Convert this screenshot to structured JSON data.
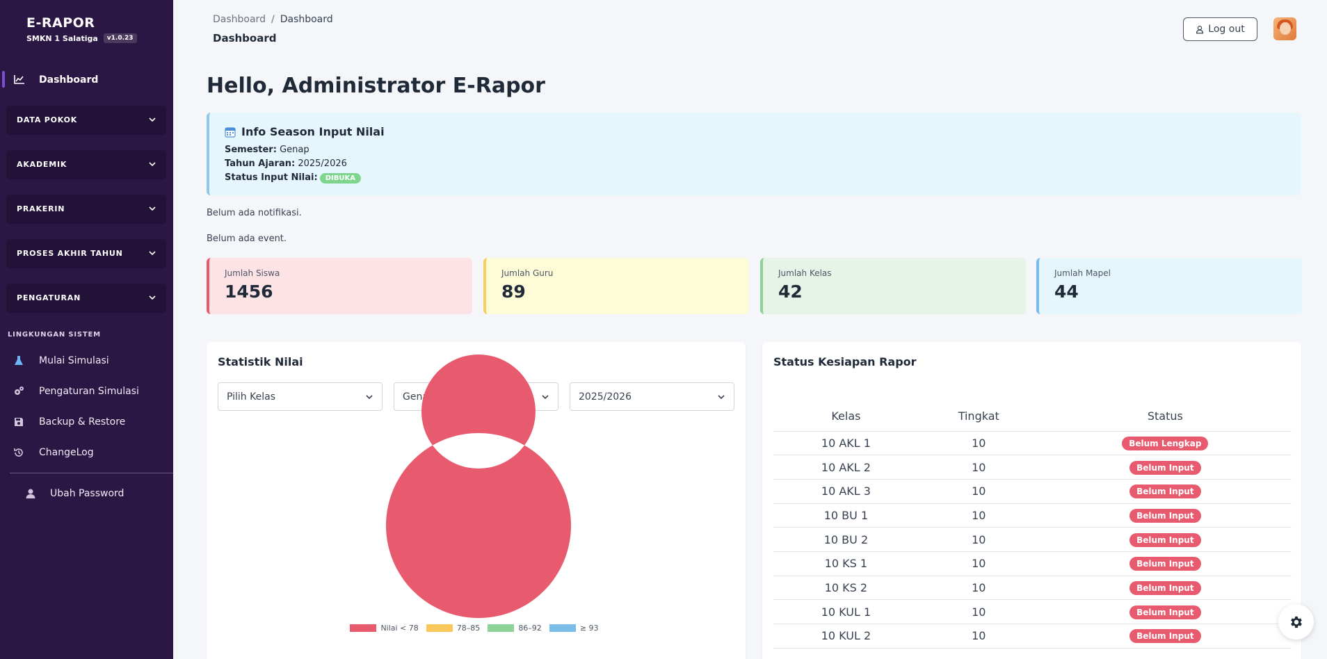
{
  "sidebar": {
    "brand_title": "E-RAPOR",
    "school": "SMKN 1 Salatiga",
    "version": "v1.0.23",
    "active_item": {
      "label": "Dashboard",
      "icon": "chart-line-icon"
    },
    "groups": [
      {
        "label": "DATA POKOK"
      },
      {
        "label": "AKADEMIK"
      },
      {
        "label": "PRAKERIN"
      },
      {
        "label": "PROSES AKHIR TAHUN"
      },
      {
        "label": "PENGATURAN"
      }
    ],
    "section_title": "LINGKUNGAN SISTEM",
    "items": [
      {
        "label": "Mulai Simulasi",
        "icon": "flask-icon"
      },
      {
        "label": "Pengaturan Simulasi",
        "icon": "gears-icon"
      },
      {
        "label": "Backup & Restore",
        "icon": "save-icon"
      },
      {
        "label": "ChangeLog",
        "icon": "history-icon"
      }
    ],
    "footer_item": {
      "label": "Ubah Password",
      "icon": "user-icon"
    }
  },
  "header": {
    "breadcrumb": [
      "Dashboard",
      "Dashboard"
    ],
    "page_title": "Dashboard",
    "logout_label": "Log out"
  },
  "greeting": "Hello, Administrator E-Rapor",
  "info": {
    "title": "Info Season Input Nilai",
    "semester_label": "Semester:",
    "semester": "Genap",
    "year_label": "Tahun Ajaran:",
    "year": "2025/2026",
    "status_label": "Status Input Nilai:",
    "status": "DIBUKA"
  },
  "notifications": "Belum ada notifikasi.",
  "events": "Belum ada event.",
  "stats": [
    {
      "label": "Jumlah Siswa",
      "value": "1456",
      "bg": "#fde2e6",
      "border": "#e85a6e"
    },
    {
      "label": "Jumlah Guru",
      "value": "89",
      "bg": "#fefbd8",
      "border": "#f7cf5e"
    },
    {
      "label": "Jumlah Kelas",
      "value": "42",
      "bg": "#e6f4e8",
      "border": "#8fd39b"
    },
    {
      "label": "Jumlah Mapel",
      "value": "44",
      "bg": "#e6f6fd",
      "border": "#7bbde8"
    }
  ],
  "statistik": {
    "title": "Statistik Nilai",
    "filters": [
      {
        "value": "Pilih Kelas"
      },
      {
        "value": "Genap"
      },
      {
        "value": "2025/2026"
      }
    ]
  },
  "chart_data": {
    "type": "pie",
    "donut": true,
    "categories": [
      "Nilai < 78",
      "78–85",
      "86–92",
      "≥ 93"
    ],
    "values": [
      100,
      0,
      0,
      0
    ],
    "colors": [
      "#e85a6e",
      "#f9c85a",
      "#8fd39b",
      "#7bbde8"
    ],
    "legend_position": "bottom"
  },
  "kesiapan": {
    "title": "Status Kesiapan Rapor",
    "columns": [
      "Kelas",
      "Tingkat",
      "Status"
    ],
    "rows": [
      {
        "kelas": "10 AKL 1",
        "tingkat": "10",
        "status": "Belum Lengkap"
      },
      {
        "kelas": "10 AKL 2",
        "tingkat": "10",
        "status": "Belum Input"
      },
      {
        "kelas": "10 AKL 3",
        "tingkat": "10",
        "status": "Belum Input"
      },
      {
        "kelas": "10 BU 1",
        "tingkat": "10",
        "status": "Belum Input"
      },
      {
        "kelas": "10 BU 2",
        "tingkat": "10",
        "status": "Belum Input"
      },
      {
        "kelas": "10 KS 1",
        "tingkat": "10",
        "status": "Belum Input"
      },
      {
        "kelas": "10 KS 2",
        "tingkat": "10",
        "status": "Belum Input"
      },
      {
        "kelas": "10 KUL 1",
        "tingkat": "10",
        "status": "Belum Input"
      },
      {
        "kelas": "10 KUL 2",
        "tingkat": "10",
        "status": "Belum Input"
      }
    ]
  }
}
